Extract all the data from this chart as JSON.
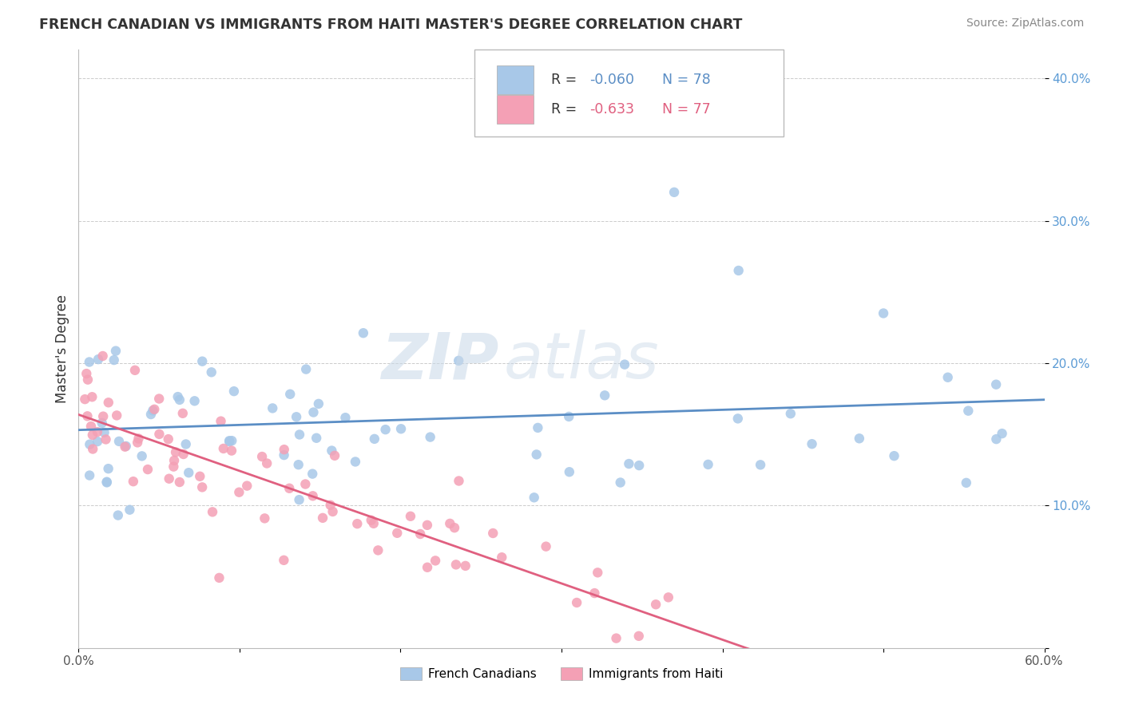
{
  "title": "FRENCH CANADIAN VS IMMIGRANTS FROM HAITI MASTER'S DEGREE CORRELATION CHART",
  "source": "Source: ZipAtlas.com",
  "ylabel": "Master's Degree",
  "xlim": [
    0.0,
    60.0
  ],
  "ylim": [
    0.0,
    42.0
  ],
  "blue_R": -0.06,
  "blue_N": 78,
  "pink_R": -0.633,
  "pink_N": 77,
  "blue_color": "#A8C8E8",
  "pink_color": "#F4A0B5",
  "blue_line_color": "#5B8EC5",
  "pink_line_color": "#E06080",
  "background_color": "#FFFFFF",
  "grid_color": "#CCCCCC",
  "title_color": "#333333",
  "source_color": "#888888",
  "ytick_color": "#5B9BD5",
  "xtick_color": "#555555"
}
